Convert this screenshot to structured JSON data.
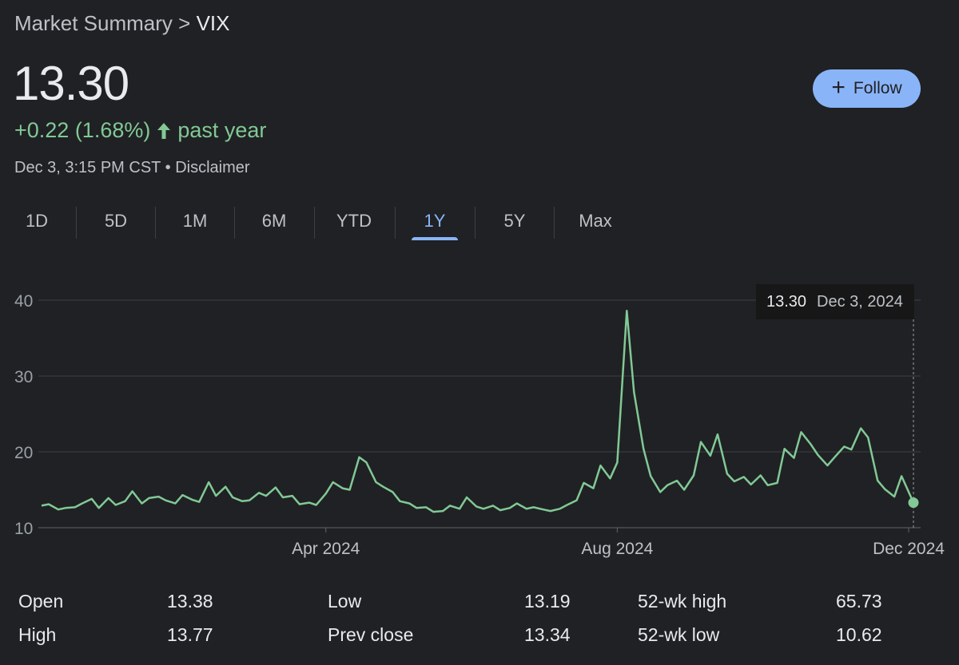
{
  "breadcrumb": {
    "prefix": "Market Summary",
    "separator": ">",
    "ticker": "VIX"
  },
  "price": "13.30",
  "change": {
    "text": "+0.22 (1.68%)",
    "period": "past year",
    "color": "#81c995",
    "icon": "arrow-up-icon"
  },
  "meta": {
    "timestamp": "Dec 3, 3:15 PM CST",
    "dot": "•",
    "disclaimer": "Disclaimer"
  },
  "follow": {
    "label": "Follow",
    "icon": "plus-icon",
    "color": "#8ab4f8"
  },
  "tabs": [
    {
      "label": "1D"
    },
    {
      "label": "5D"
    },
    {
      "label": "1M"
    },
    {
      "label": "6M"
    },
    {
      "label": "YTD"
    },
    {
      "label": "1Y",
      "active": true
    },
    {
      "label": "5Y"
    },
    {
      "label": "Max"
    }
  ],
  "chart_data": {
    "type": "line",
    "line_color": "#81c995",
    "y_ticks": [
      10,
      20,
      30,
      40
    ],
    "ylim": [
      10,
      40
    ],
    "x_start": "2023-12-04",
    "x_end": "2024-12-03",
    "x_ticks": [
      {
        "label": "Apr 2024",
        "date": "2024-04-01"
      },
      {
        "label": "Aug 2024",
        "date": "2024-08-01"
      },
      {
        "label": "Dec 2024",
        "date": "2024-12-01"
      }
    ],
    "grid": "horizontal",
    "tooltip": {
      "value": "13.30",
      "date": "Dec 3, 2024"
    },
    "x": [
      "2023-12-04",
      "2023-12-07",
      "2023-12-11",
      "2023-12-14",
      "2023-12-18",
      "2023-12-21",
      "2023-12-25",
      "2023-12-28",
      "2024-01-01",
      "2024-01-04",
      "2024-01-08",
      "2024-01-11",
      "2024-01-15",
      "2024-01-18",
      "2024-01-22",
      "2024-01-25",
      "2024-01-29",
      "2024-02-01",
      "2024-02-05",
      "2024-02-08",
      "2024-02-12",
      "2024-02-15",
      "2024-02-19",
      "2024-02-22",
      "2024-02-26",
      "2024-02-29",
      "2024-03-04",
      "2024-03-07",
      "2024-03-11",
      "2024-03-14",
      "2024-03-18",
      "2024-03-21",
      "2024-03-25",
      "2024-03-28",
      "2024-04-01",
      "2024-04-04",
      "2024-04-08",
      "2024-04-11",
      "2024-04-15",
      "2024-04-18",
      "2024-04-22",
      "2024-04-25",
      "2024-04-29",
      "2024-05-02",
      "2024-05-06",
      "2024-05-09",
      "2024-05-13",
      "2024-05-16",
      "2024-05-20",
      "2024-05-23",
      "2024-05-27",
      "2024-05-30",
      "2024-06-03",
      "2024-06-06",
      "2024-06-10",
      "2024-06-13",
      "2024-06-17",
      "2024-06-20",
      "2024-06-24",
      "2024-06-27",
      "2024-07-01",
      "2024-07-04",
      "2024-07-08",
      "2024-07-11",
      "2024-07-15",
      "2024-07-18",
      "2024-07-22",
      "2024-07-25",
      "2024-07-29",
      "2024-08-01",
      "2024-08-05",
      "2024-08-08",
      "2024-08-12",
      "2024-08-15",
      "2024-08-19",
      "2024-08-22",
      "2024-08-26",
      "2024-08-29",
      "2024-09-02",
      "2024-09-05",
      "2024-09-09",
      "2024-09-12",
      "2024-09-16",
      "2024-09-19",
      "2024-09-23",
      "2024-09-26",
      "2024-09-30",
      "2024-10-03",
      "2024-10-07",
      "2024-10-10",
      "2024-10-14",
      "2024-10-17",
      "2024-10-21",
      "2024-10-24",
      "2024-10-28",
      "2024-10-31",
      "2024-11-04",
      "2024-11-07",
      "2024-11-11",
      "2024-11-14",
      "2024-11-18",
      "2024-11-21",
      "2024-11-25",
      "2024-11-28",
      "2024-12-03"
    ],
    "values": [
      12.9,
      13.1,
      12.4,
      12.6,
      12.7,
      13.2,
      13.8,
      12.6,
      13.9,
      13.0,
      13.5,
      14.8,
      13.2,
      13.9,
      14.1,
      13.6,
      13.2,
      14.3,
      13.7,
      13.4,
      16.0,
      14.2,
      15.4,
      14.0,
      13.5,
      13.6,
      14.6,
      14.2,
      15.3,
      14.0,
      14.2,
      13.1,
      13.3,
      13.0,
      14.5,
      16.0,
      15.2,
      15.0,
      19.3,
      18.6,
      16.0,
      15.4,
      14.7,
      13.5,
      13.2,
      12.6,
      12.7,
      12.1,
      12.2,
      12.9,
      12.5,
      14.0,
      12.8,
      12.5,
      12.9,
      12.3,
      12.6,
      13.2,
      12.5,
      12.7,
      12.4,
      12.2,
      12.5,
      13.0,
      13.6,
      15.9,
      15.2,
      18.2,
      16.5,
      18.6,
      38.6,
      27.9,
      20.4,
      16.8,
      14.7,
      15.6,
      16.2,
      15.0,
      16.9,
      21.3,
      19.5,
      22.3,
      17.1,
      16.1,
      16.7,
      15.7,
      16.9,
      15.6,
      15.9,
      20.4,
      19.2,
      22.6,
      21.0,
      19.6,
      18.2,
      19.3,
      20.7,
      20.3,
      23.1,
      21.9,
      16.2,
      15.1,
      14.1,
      16.8,
      13.3
    ]
  },
  "stats": [
    {
      "label": "Open",
      "value": "13.38"
    },
    {
      "label": "High",
      "value": "13.77"
    },
    {
      "label": "Low",
      "value": "13.19"
    },
    {
      "label": "Prev close",
      "value": "13.34"
    },
    {
      "label": "52-wk high",
      "value": "65.73"
    },
    {
      "label": "52-wk low",
      "value": "10.62"
    }
  ]
}
